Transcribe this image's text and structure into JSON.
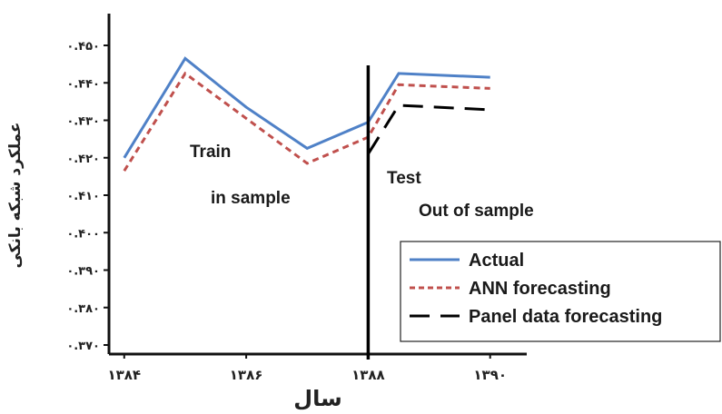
{
  "chart_data": {
    "type": "line",
    "title": "",
    "xlabel": "سال",
    "ylabel": "عملکرد شبکه بانکی",
    "x": [
      "۱۳۸۴",
      "۱۳۸۵",
      "۱۳۸۶",
      "۱۳۸۷",
      "۱۳۸۸",
      "۱۳۸۹",
      "۱۳۹۰"
    ],
    "x_tick_labels": [
      "۱۳۸۴",
      "۱۳۸۶",
      "۱۳۸۸",
      "۱۳۹۰"
    ],
    "y_tick_labels": [
      "۰.۴۵۰",
      "۰.۴۴۰",
      "۰.۴۳۰",
      "۰.۴۲۰",
      "۰.۴۱۰",
      "۰.۴۰۰",
      "۰.۳۹۰",
      "۰.۳۸۰",
      "۰.۳۷۰"
    ],
    "ylim": [
      0.37,
      0.452
    ],
    "series": [
      {
        "name": "Actual",
        "color": "#4f81c7",
        "style": "solid",
        "points": [
          [
            1384,
            0.42
          ],
          [
            1385,
            0.4465
          ],
          [
            1386,
            0.4335
          ],
          [
            1387,
            0.4225
          ],
          [
            1388,
            0.4295
          ],
          [
            1388.5,
            0.4425
          ],
          [
            1390,
            0.4415
          ]
        ]
      },
      {
        "name": "ANN forecasting",
        "color": "#c0504d",
        "style": "dashed",
        "points": [
          [
            1384,
            0.4165
          ],
          [
            1385,
            0.4425
          ],
          [
            1386,
            0.4305
          ],
          [
            1387,
            0.4185
          ],
          [
            1388,
            0.4255
          ],
          [
            1388.5,
            0.4395
          ],
          [
            1390,
            0.4385
          ]
        ]
      },
      {
        "name": "Panel data forecasting",
        "color": "#000000",
        "style": "longdash",
        "points": [
          [
            1388,
            0.421
          ],
          [
            1388.5,
            0.434
          ],
          [
            1390,
            0.4328
          ]
        ]
      }
    ],
    "divider_x": 1388,
    "annotations": {
      "train": "Train",
      "in_sample": "in sample",
      "test": "Test",
      "out_of_sample": "Out of sample"
    },
    "legend_position": "bottom-right",
    "grid": false
  }
}
